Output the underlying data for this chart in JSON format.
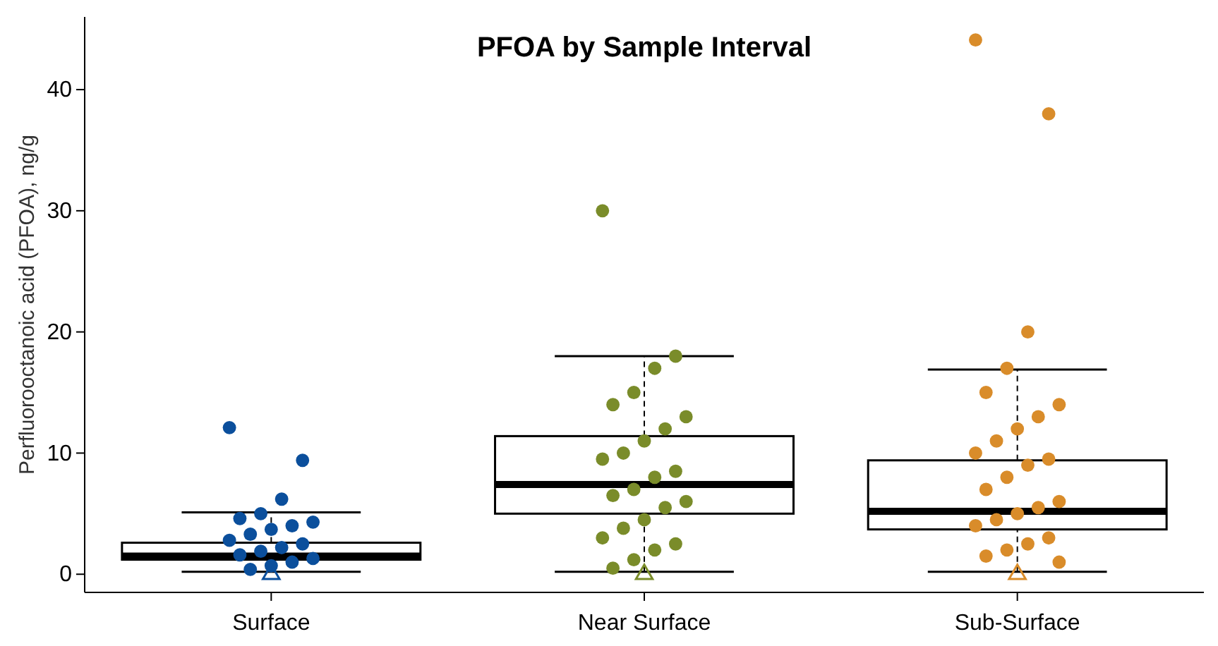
{
  "chart_data": {
    "type": "box",
    "title": "PFOA by Sample Interval",
    "ylabel": "Perfluorooctanoic acid (PFOA), ng/g",
    "categories": [
      "Surface",
      "Near Surface",
      "Sub-Surface"
    ],
    "ylim": [
      -1.5,
      46
    ],
    "yticks": [
      0,
      10,
      20,
      30,
      40
    ],
    "grid": false,
    "boxes": [
      {
        "low": 0.2,
        "q1": 1.2,
        "median": 1.5,
        "q3": 2.6,
        "high": 5.1
      },
      {
        "low": 0.2,
        "q1": 5.0,
        "median": 7.4,
        "q3": 11.4,
        "high": 18.0
      },
      {
        "low": 0.2,
        "q1": 3.7,
        "median": 5.2,
        "q3": 9.4,
        "high": 16.9
      }
    ],
    "series": [
      {
        "type": "scatter",
        "marker": "circle",
        "color": "#0b4f9c",
        "x": [
          "Surface",
          "Surface",
          "Surface",
          "Surface",
          "Surface",
          "Surface",
          "Surface",
          "Surface",
          "Surface",
          "Surface",
          "Surface",
          "Surface",
          "Surface",
          "Surface",
          "Surface",
          "Surface",
          "Surface",
          "Surface"
        ],
        "values": [
          12.1,
          9.4,
          6.2,
          5.0,
          4.6,
          4.3,
          4.0,
          3.7,
          3.3,
          2.8,
          2.5,
          2.2,
          1.9,
          1.6,
          1.3,
          1.0,
          0.7,
          0.4
        ]
      },
      {
        "type": "scatter",
        "marker": "circle",
        "color": "#7a8c2a",
        "x": [
          "Near Surface",
          "Near Surface",
          "Near Surface",
          "Near Surface",
          "Near Surface",
          "Near Surface",
          "Near Surface",
          "Near Surface",
          "Near Surface",
          "Near Surface",
          "Near Surface",
          "Near Surface",
          "Near Surface",
          "Near Surface",
          "Near Surface",
          "Near Surface",
          "Near Surface",
          "Near Surface",
          "Near Surface",
          "Near Surface",
          "Near Surface",
          "Near Surface",
          "Near Surface"
        ],
        "values": [
          30,
          18,
          17,
          15,
          14,
          13,
          12,
          11,
          10,
          9.5,
          8.5,
          8,
          7,
          6.5,
          6,
          5.5,
          4.5,
          3.8,
          3,
          2.5,
          2,
          1.2,
          0.5
        ]
      },
      {
        "type": "scatter",
        "marker": "circle",
        "color": "#d98c2a",
        "x": [
          "Sub-Surface",
          "Sub-Surface",
          "Sub-Surface",
          "Sub-Surface",
          "Sub-Surface",
          "Sub-Surface",
          "Sub-Surface",
          "Sub-Surface",
          "Sub-Surface",
          "Sub-Surface",
          "Sub-Surface",
          "Sub-Surface",
          "Sub-Surface",
          "Sub-Surface",
          "Sub-Surface",
          "Sub-Surface",
          "Sub-Surface",
          "Sub-Surface",
          "Sub-Surface",
          "Sub-Surface",
          "Sub-Surface",
          "Sub-Surface",
          "Sub-Surface",
          "Sub-Surface"
        ],
        "values": [
          44.1,
          38,
          20,
          17,
          15,
          14,
          13,
          12,
          11,
          10,
          9.5,
          9,
          8,
          7,
          6,
          5.5,
          5,
          4.5,
          4,
          3,
          2.5,
          2,
          1.5,
          1
        ]
      },
      {
        "type": "scatter",
        "marker": "triangle",
        "colors": [
          "#0b4f9c",
          "#7a8c2a",
          "#d98c2a"
        ],
        "x": [
          "Surface",
          "Near Surface",
          "Sub-Surface"
        ],
        "values": [
          0,
          0,
          0
        ]
      }
    ]
  }
}
